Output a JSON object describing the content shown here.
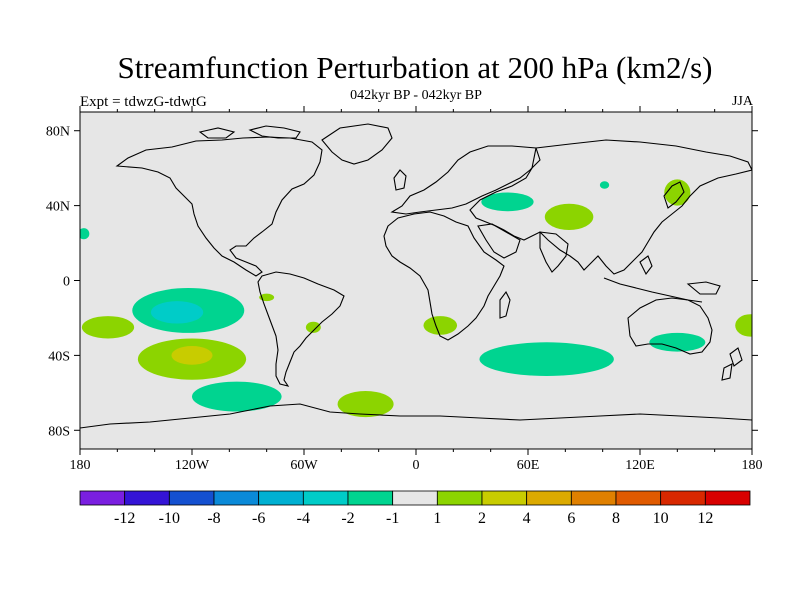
{
  "chart_data": {
    "type": "heatmap",
    "title": "Streamfunction Perturbation at 200 hPa (km2/s)",
    "subtitle": "042kyr BP - 042kyr BP",
    "left_label": "Expt = tdwzG-tdwtG",
    "right_label": "JJA",
    "x_ticks": [
      {
        "value": -180,
        "label": "180"
      },
      {
        "value": -120,
        "label": "120W"
      },
      {
        "value": -60,
        "label": "60W"
      },
      {
        "value": 0,
        "label": "0"
      },
      {
        "value": 60,
        "label": "60E"
      },
      {
        "value": 120,
        "label": "120E"
      },
      {
        "value": 180,
        "label": "180"
      }
    ],
    "y_ticks": [
      {
        "value": 80,
        "label": "80N"
      },
      {
        "value": 40,
        "label": "40N"
      },
      {
        "value": 0,
        "label": "0"
      },
      {
        "value": -40,
        "label": "40S"
      },
      {
        "value": -80,
        "label": "80S"
      }
    ],
    "xlim": [
      -180,
      180
    ],
    "ylim": [
      -90,
      90
    ],
    "colorbar": {
      "colors": [
        "#7a1fe0",
        "#3414d6",
        "#1450d0",
        "#0a8ad8",
        "#00b0d2",
        "#00ccc8",
        "#00d490",
        "#e6e6e6",
        "#8cd400",
        "#c8cc00",
        "#dcaa00",
        "#e08000",
        "#e05a00",
        "#d82800",
        "#d80000"
      ],
      "labels": [
        "-12",
        "-10",
        "-8",
        "-6",
        "-4",
        "-2",
        "-1",
        "1",
        "2",
        "4",
        "6",
        "8",
        "10",
        "12"
      ]
    },
    "regions": [
      {
        "lon": -165,
        "lat": -25,
        "rx": 14,
        "ry": 6,
        "level": 2
      },
      {
        "lon": -178,
        "lat": 25,
        "rx": 3,
        "ry": 3,
        "level": -2
      },
      {
        "lon": -122,
        "lat": -16,
        "rx": 30,
        "ry": 12,
        "level": -2
      },
      {
        "lon": -128,
        "lat": -17,
        "rx": 14,
        "ry": 6,
        "level": -4
      },
      {
        "lon": -120,
        "lat": -42,
        "rx": 29,
        "ry": 11,
        "level": 2
      },
      {
        "lon": -120,
        "lat": -40,
        "rx": 11,
        "ry": 5,
        "level": 4
      },
      {
        "lon": -96,
        "lat": -62,
        "rx": 24,
        "ry": 8,
        "level": -2
      },
      {
        "lon": -80,
        "lat": -9,
        "rx": 4,
        "ry": 2,
        "level": 2
      },
      {
        "lon": -55,
        "lat": -25,
        "rx": 4,
        "ry": 3,
        "level": 2
      },
      {
        "lon": -27,
        "lat": -66,
        "rx": 15,
        "ry": 7,
        "level": 2
      },
      {
        "lon": 13,
        "lat": -24,
        "rx": 9,
        "ry": 5,
        "level": 2
      },
      {
        "lon": 49,
        "lat": 42,
        "rx": 14,
        "ry": 5,
        "level": -2
      },
      {
        "lon": 82,
        "lat": 34,
        "rx": 13,
        "ry": 7,
        "level": 2
      },
      {
        "lon": 101,
        "lat": 51,
        "rx": 2.5,
        "ry": 2,
        "level": -2
      },
      {
        "lon": 140,
        "lat": 47,
        "rx": 7,
        "ry": 7,
        "level": 2
      },
      {
        "lon": 70,
        "lat": -42,
        "rx": 36,
        "ry": 9,
        "level": -2
      },
      {
        "lon": 140,
        "lat": -33,
        "rx": 15,
        "ry": 5,
        "level": -2
      },
      {
        "lon": 179,
        "lat": -24,
        "rx": 8,
        "ry": 6,
        "level": 2
      }
    ]
  }
}
